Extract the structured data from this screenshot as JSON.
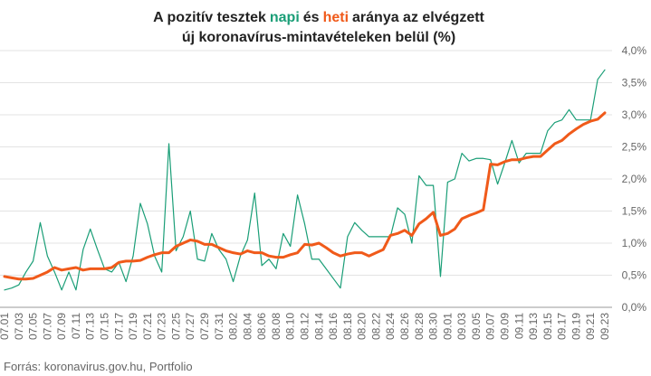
{
  "chart_data": {
    "type": "line",
    "title": {
      "before": "A pozitív tesztek",
      "between": "és",
      "after": "aránya az elvégzett",
      "line2": "új koronavírus-mintavételeken belül (%)"
    },
    "source": "Forrás: koronavirus.gov.hu, Portfolio",
    "categories": [
      "07.01",
      null,
      "07.03",
      null,
      "07.05",
      null,
      "07.07",
      null,
      "07.09",
      null,
      "07.11",
      null,
      "07.13",
      null,
      "07.15",
      null,
      "07.17",
      null,
      "07.19",
      null,
      "07.21",
      null,
      "07.23",
      null,
      "07.25",
      null,
      "07.27",
      null,
      "07.29",
      null,
      "07.31",
      null,
      "08.02",
      null,
      "08.04",
      null,
      "08.06",
      null,
      "08.08",
      null,
      "08.10",
      null,
      "08.12",
      null,
      "08.14",
      null,
      "08.16",
      null,
      "08.18",
      null,
      "08.20",
      null,
      "08.22",
      null,
      "08.24",
      null,
      "08.26",
      null,
      "08.28",
      null,
      "08.30",
      null,
      "09.01",
      null,
      "09.03",
      null,
      "09.05",
      null,
      "09.07",
      null,
      "09.09",
      null,
      "09.11",
      null,
      "09.13",
      null,
      "09.15",
      null,
      "09.17",
      null,
      "09.19",
      null,
      "09.21",
      null,
      "09.23"
    ],
    "series": [
      {
        "name": "napi",
        "color": "#1a9e77",
        "width": 1.2,
        "values": [
          0.27,
          0.3,
          0.35,
          0.55,
          0.72,
          1.32,
          0.8,
          0.55,
          0.27,
          0.55,
          0.27,
          0.9,
          1.22,
          0.9,
          0.6,
          0.55,
          0.7,
          0.4,
          0.8,
          1.62,
          1.3,
          0.8,
          0.55,
          2.55,
          0.88,
          1.1,
          1.5,
          0.75,
          0.72,
          1.15,
          0.9,
          0.75,
          0.4,
          0.8,
          1.05,
          1.78,
          0.65,
          0.75,
          0.6,
          1.15,
          0.95,
          1.75,
          1.3,
          0.75,
          0.75,
          0.6,
          0.45,
          0.3,
          1.1,
          1.32,
          1.2,
          1.1,
          1.1,
          1.1,
          1.1,
          1.55,
          1.45,
          1.0,
          2.05,
          1.9,
          1.9,
          0.48,
          1.95,
          2.0,
          2.4,
          2.28,
          2.32,
          2.32,
          2.3,
          1.92,
          2.25,
          2.6,
          2.25,
          2.4,
          2.4,
          2.4,
          2.75,
          2.88,
          2.92,
          3.08,
          2.92,
          2.92,
          2.92,
          3.55,
          3.7
        ]
      },
      {
        "name": "heti",
        "color": "#f05a1a",
        "width": 3,
        "values": [
          0.48,
          0.46,
          0.44,
          0.44,
          0.45,
          0.5,
          0.55,
          0.62,
          0.58,
          0.6,
          0.62,
          0.58,
          0.6,
          0.6,
          0.6,
          0.62,
          0.7,
          0.72,
          0.72,
          0.73,
          0.78,
          0.82,
          0.85,
          0.85,
          0.95,
          1.0,
          1.05,
          1.03,
          0.98,
          0.98,
          0.93,
          0.88,
          0.85,
          0.83,
          0.88,
          0.85,
          0.85,
          0.8,
          0.78,
          0.78,
          0.82,
          0.85,
          0.98,
          0.97,
          1.0,
          0.93,
          0.85,
          0.8,
          0.83,
          0.85,
          0.85,
          0.8,
          0.85,
          0.9,
          1.12,
          1.15,
          1.2,
          1.12,
          1.3,
          1.38,
          1.48,
          1.12,
          1.15,
          1.22,
          1.38,
          1.43,
          1.47,
          1.52,
          2.23,
          2.22,
          2.27,
          2.3,
          2.3,
          2.33,
          2.35,
          2.35,
          2.45,
          2.55,
          2.6,
          2.7,
          2.78,
          2.85,
          2.9,
          2.93,
          3.03
        ]
      }
    ],
    "ylim": [
      0,
      4
    ],
    "yticks": [
      {
        "value": 0,
        "label": "0,0%"
      },
      {
        "value": 0.5,
        "label": "0,5%"
      },
      {
        "value": 1,
        "label": "1,0%"
      },
      {
        "value": 1.5,
        "label": "1,5%"
      },
      {
        "value": 2,
        "label": "2,0%"
      },
      {
        "value": 2.5,
        "label": "2,5%"
      },
      {
        "value": 3,
        "label": "3,0%"
      },
      {
        "value": 3.5,
        "label": "3,5%"
      },
      {
        "value": 4,
        "label": "4,0%"
      }
    ],
    "grid": true
  }
}
